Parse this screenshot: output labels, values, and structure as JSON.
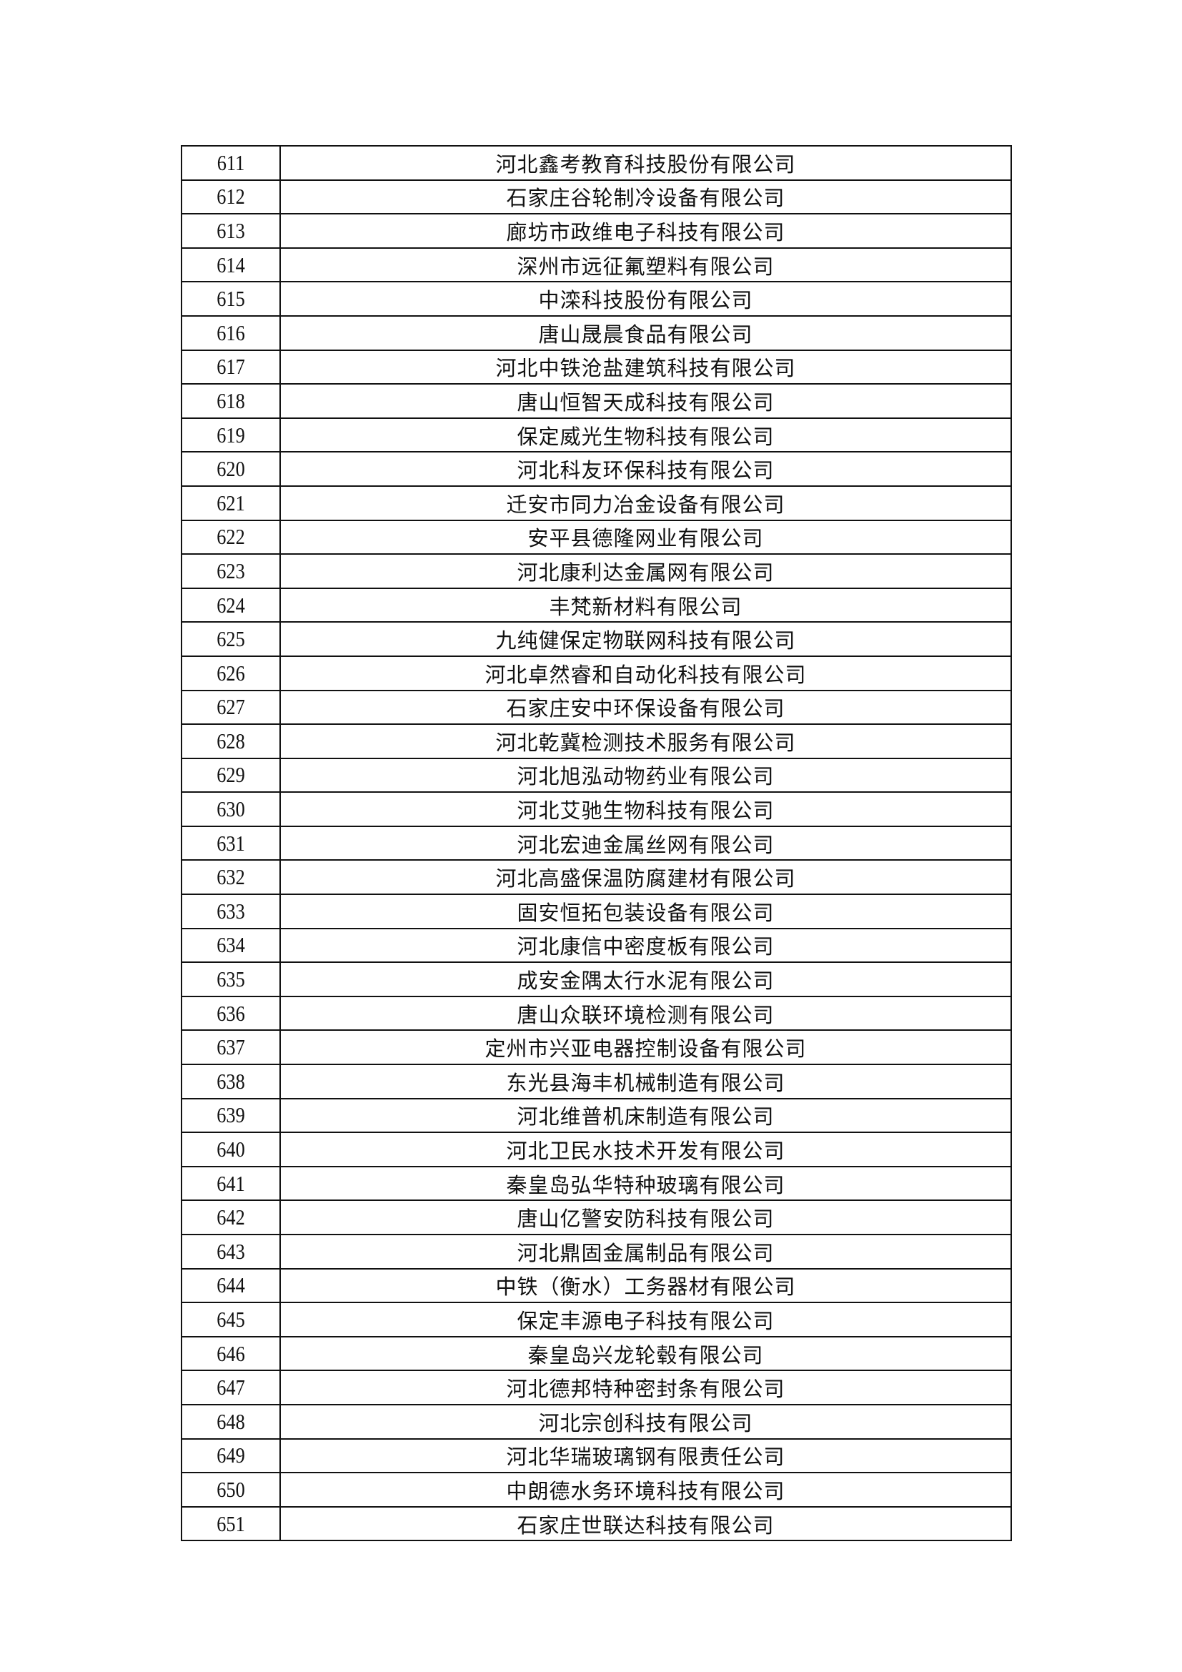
{
  "rows": [
    {
      "no": "611",
      "name": "河北鑫考教育科技股份有限公司"
    },
    {
      "no": "612",
      "name": "石家庄谷轮制冷设备有限公司"
    },
    {
      "no": "613",
      "name": "廊坊市政维电子科技有限公司"
    },
    {
      "no": "614",
      "name": "深州市远征氟塑料有限公司"
    },
    {
      "no": "615",
      "name": "中滦科技股份有限公司"
    },
    {
      "no": "616",
      "name": "唐山晟晨食品有限公司"
    },
    {
      "no": "617",
      "name": "河北中铁沧盐建筑科技有限公司"
    },
    {
      "no": "618",
      "name": "唐山恒智天成科技有限公司"
    },
    {
      "no": "619",
      "name": "保定威光生物科技有限公司"
    },
    {
      "no": "620",
      "name": "河北科友环保科技有限公司"
    },
    {
      "no": "621",
      "name": "迁安市同力冶金设备有限公司"
    },
    {
      "no": "622",
      "name": "安平县德隆网业有限公司"
    },
    {
      "no": "623",
      "name": "河北康利达金属网有限公司"
    },
    {
      "no": "624",
      "name": "丰梵新材料有限公司"
    },
    {
      "no": "625",
      "name": "九纯健保定物联网科技有限公司"
    },
    {
      "no": "626",
      "name": "河北卓然睿和自动化科技有限公司"
    },
    {
      "no": "627",
      "name": "石家庄安中环保设备有限公司"
    },
    {
      "no": "628",
      "name": "河北乾冀检测技术服务有限公司"
    },
    {
      "no": "629",
      "name": "河北旭泓动物药业有限公司"
    },
    {
      "no": "630",
      "name": "河北艾驰生物科技有限公司"
    },
    {
      "no": "631",
      "name": "河北宏迪金属丝网有限公司"
    },
    {
      "no": "632",
      "name": "河北高盛保温防腐建材有限公司"
    },
    {
      "no": "633",
      "name": "固安恒拓包装设备有限公司"
    },
    {
      "no": "634",
      "name": "河北康信中密度板有限公司"
    },
    {
      "no": "635",
      "name": "成安金隅太行水泥有限公司"
    },
    {
      "no": "636",
      "name": "唐山众联环境检测有限公司"
    },
    {
      "no": "637",
      "name": "定州市兴亚电器控制设备有限公司"
    },
    {
      "no": "638",
      "name": "东光县海丰机械制造有限公司"
    },
    {
      "no": "639",
      "name": "河北维普机床制造有限公司"
    },
    {
      "no": "640",
      "name": "河北卫民水技术开发有限公司"
    },
    {
      "no": "641",
      "name": "秦皇岛弘华特种玻璃有限公司"
    },
    {
      "no": "642",
      "name": "唐山亿警安防科技有限公司"
    },
    {
      "no": "643",
      "name": "河北鼎固金属制品有限公司"
    },
    {
      "no": "644",
      "name": "中铁（衡水）工务器材有限公司"
    },
    {
      "no": "645",
      "name": "保定丰源电子科技有限公司"
    },
    {
      "no": "646",
      "name": "秦皇岛兴龙轮毂有限公司"
    },
    {
      "no": "647",
      "name": "河北德邦特种密封条有限公司"
    },
    {
      "no": "648",
      "name": "河北宗创科技有限公司"
    },
    {
      "no": "649",
      "name": "河北华瑞玻璃钢有限责任公司"
    },
    {
      "no": "650",
      "name": "中朗德水务环境科技有限公司"
    },
    {
      "no": "651",
      "name": "石家庄世联达科技有限公司"
    }
  ]
}
